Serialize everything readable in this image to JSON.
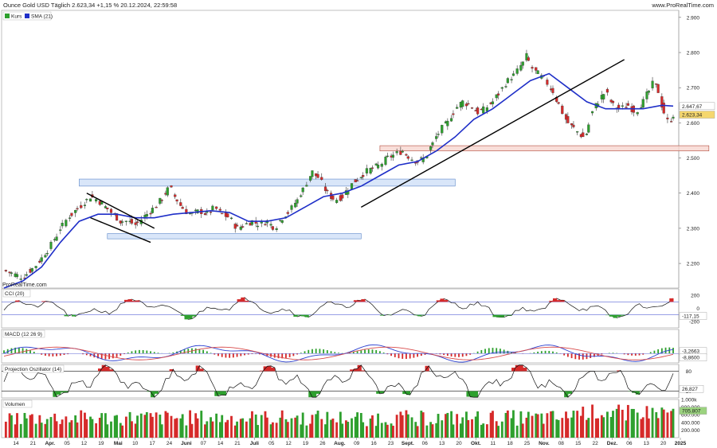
{
  "header": {
    "title": "Ounce Gold USD Täglich 2.623,34 +1,15 % 20.12.2024, 22:59:58",
    "site": "www.ProRealTime.com"
  },
  "watermark": "ProRealTime.com",
  "colors": {
    "up": "#2ea02e",
    "down": "#d62a2a",
    "sma": "#1f2fc8",
    "trend": "#000000",
    "zone_blue": "#cfe0f7",
    "zone_red": "#f7d6cf"
  },
  "chart_data": [
    {
      "type": "candlestick",
      "title": "Ounce Gold USD Täglich",
      "legend": [
        {
          "name": "Kurs",
          "color": "#2ea02e"
        },
        {
          "name": "SMA",
          "value_label": "(21)",
          "color": "#1f2fc8"
        }
      ],
      "ylim": [
        2130,
        2920
      ],
      "yticks": [
        "2.900",
        "2.800",
        "2.700",
        "2.600",
        "2.500",
        "2.400",
        "2.300",
        "2.200"
      ],
      "ytick_values": [
        2900,
        2800,
        2700,
        2600,
        2500,
        2400,
        2300,
        2200
      ],
      "price_labels": [
        "2.647,67",
        "2.623,34"
      ],
      "price_label_values": [
        2647.67,
        2623.34
      ],
      "close_path": [
        [
          0,
          2180
        ],
        [
          5,
          2170
        ],
        [
          10,
          2160
        ],
        [
          14,
          2180
        ],
        [
          18,
          2200
        ],
        [
          22,
          2230
        ],
        [
          26,
          2260
        ],
        [
          30,
          2300
        ],
        [
          34,
          2330
        ],
        [
          38,
          2350
        ],
        [
          42,
          2370
        ],
        [
          46,
          2390
        ],
        [
          50,
          2380
        ],
        [
          54,
          2360
        ],
        [
          58,
          2340
        ],
        [
          62,
          2320
        ],
        [
          66,
          2320
        ],
        [
          70,
          2310
        ],
        [
          74,
          2330
        ],
        [
          78,
          2350
        ],
        [
          82,
          2370
        ],
        [
          86,
          2400
        ],
        [
          88,
          2420
        ],
        [
          92,
          2380
        ],
        [
          96,
          2350
        ],
        [
          100,
          2340
        ],
        [
          104,
          2350
        ],
        [
          108,
          2340
        ],
        [
          112,
          2360
        ],
        [
          116,
          2340
        ],
        [
          120,
          2330
        ],
        [
          124,
          2300
        ],
        [
          128,
          2310
        ],
        [
          132,
          2320
        ],
        [
          136,
          2310
        ],
        [
          140,
          2320
        ],
        [
          144,
          2300
        ],
        [
          148,
          2330
        ],
        [
          152,
          2350
        ],
        [
          156,
          2380
        ],
        [
          160,
          2420
        ],
        [
          164,
          2460
        ],
        [
          168,
          2440
        ],
        [
          172,
          2400
        ],
        [
          176,
          2380
        ],
        [
          180,
          2390
        ],
        [
          184,
          2420
        ],
        [
          188,
          2440
        ],
        [
          192,
          2460
        ],
        [
          196,
          2470
        ],
        [
          200,
          2480
        ],
        [
          204,
          2500
        ],
        [
          208,
          2510
        ],
        [
          212,
          2520
        ],
        [
          216,
          2500
        ],
        [
          220,
          2490
        ],
        [
          224,
          2500
        ],
        [
          228,
          2540
        ],
        [
          232,
          2580
        ],
        [
          236,
          2600
        ],
        [
          240,
          2640
        ],
        [
          244,
          2660
        ],
        [
          248,
          2650
        ],
        [
          252,
          2630
        ],
        [
          256,
          2640
        ],
        [
          260,
          2660
        ],
        [
          264,
          2690
        ],
        [
          268,
          2720
        ],
        [
          272,
          2740
        ],
        [
          276,
          2770
        ],
        [
          278,
          2790
        ],
        [
          280,
          2760
        ],
        [
          284,
          2740
        ],
        [
          288,
          2720
        ],
        [
          292,
          2690
        ],
        [
          296,
          2640
        ],
        [
          300,
          2600
        ],
        [
          304,
          2580
        ],
        [
          308,
          2560
        ],
        [
          310,
          2570
        ],
        [
          312,
          2620
        ],
        [
          316,
          2660
        ],
        [
          320,
          2690
        ],
        [
          324,
          2650
        ],
        [
          328,
          2640
        ],
        [
          332,
          2650
        ],
        [
          336,
          2630
        ],
        [
          340,
          2660
        ],
        [
          344,
          2700
        ],
        [
          346,
          2720
        ],
        [
          348,
          2690
        ],
        [
          350,
          2650
        ],
        [
          352,
          2610
        ],
        [
          354,
          2600
        ],
        [
          356,
          2623
        ]
      ],
      "sma_path": [
        [
          0,
          2130
        ],
        [
          10,
          2150
        ],
        [
          20,
          2190
        ],
        [
          30,
          2260
        ],
        [
          40,
          2320
        ],
        [
          50,
          2340
        ],
        [
          60,
          2340
        ],
        [
          70,
          2330
        ],
        [
          80,
          2330
        ],
        [
          90,
          2340
        ],
        [
          100,
          2345
        ],
        [
          110,
          2350
        ],
        [
          120,
          2345
        ],
        [
          130,
          2320
        ],
        [
          140,
          2320
        ],
        [
          150,
          2330
        ],
        [
          160,
          2360
        ],
        [
          170,
          2390
        ],
        [
          180,
          2400
        ],
        [
          190,
          2420
        ],
        [
          200,
          2450
        ],
        [
          210,
          2480
        ],
        [
          220,
          2490
        ],
        [
          230,
          2520
        ],
        [
          240,
          2560
        ],
        [
          250,
          2610
        ],
        [
          260,
          2640
        ],
        [
          270,
          2680
        ],
        [
          280,
          2720
        ],
        [
          290,
          2740
        ],
        [
          300,
          2700
        ],
        [
          310,
          2660
        ],
        [
          320,
          2640
        ],
        [
          330,
          2640
        ],
        [
          340,
          2640
        ],
        [
          350,
          2650
        ],
        [
          356,
          2647.67
        ]
      ],
      "trend_lines": [
        {
          "from": [
            44,
            2400
          ],
          "to": [
            80,
            2300
          ]
        },
        {
          "from": [
            46,
            2330
          ],
          "to": [
            78,
            2260
          ]
        },
        {
          "from": [
            190,
            2360
          ],
          "to": [
            330,
            2780
          ]
        }
      ],
      "zones": [
        {
          "x0": 40,
          "x1": 240,
          "y0": 2420,
          "y1": 2440,
          "color": "#cfe0f7"
        },
        {
          "x0": 55,
          "x1": 190,
          "y0": 2270,
          "y1": 2285,
          "color": "#cfe0f7"
        },
        {
          "x0": 200,
          "x1": 375,
          "y0": 2520,
          "y1": 2535,
          "color": "#f7d6cf"
        }
      ]
    },
    {
      "type": "area",
      "title": "CCI",
      "legend": [
        {
          "name": "CCI",
          "value_label": "(20)"
        }
      ],
      "ylim": [
        -300,
        300
      ],
      "yticks": [
        "200",
        "0",
        "-200"
      ],
      "ytick_values": [
        200,
        0,
        -200
      ],
      "value_label": "-117,15",
      "value_label_value": -117.15
    },
    {
      "type": "line",
      "title": "MACD",
      "legend": [
        {
          "name": "MACD",
          "value_label": "(12 26 9)"
        }
      ],
      "value_labels": [
        "-3,2663",
        "-8,8600"
      ],
      "value_label_values": [
        -3.2663,
        -8.86
      ]
    },
    {
      "type": "area",
      "title": "Projection Oszillator",
      "legend": [
        {
          "name": "Projection Oszillator",
          "value_label": "(14)"
        }
      ],
      "ylim": [
        0,
        100
      ],
      "yticks": [
        "80",
        "20"
      ],
      "ytick_values": [
        80,
        20
      ],
      "value_label": "26,827",
      "value_label_value": 26.827
    },
    {
      "type": "bar",
      "title": "Volumen",
      "legend": [
        {
          "name": "Volumen"
        }
      ],
      "ylim": [
        0,
        1000000
      ],
      "yticks": [
        "1.000k",
        "800.000",
        "600.000",
        "400.000",
        "200.000"
      ],
      "ytick_values": [
        1000000,
        800000,
        600000,
        400000,
        200000
      ],
      "value_labels": [
        "705.807"
      ]
    }
  ],
  "x_axis": {
    "labels": [
      "14",
      "21",
      "Apr.",
      "05",
      "12",
      "19",
      "Mai",
      "10",
      "17",
      "24",
      "Juni",
      "07",
      "14",
      "21",
      "Juli",
      "05",
      "12",
      "19",
      "26",
      "Aug.",
      "09",
      "16",
      "23",
      "Sept.",
      "06",
      "13",
      "20",
      "Okt.",
      "11",
      "18",
      "25",
      "Nov.",
      "08",
      "15",
      "22",
      "Dez.",
      "06",
      "13",
      "20",
      "2025"
    ]
  }
}
